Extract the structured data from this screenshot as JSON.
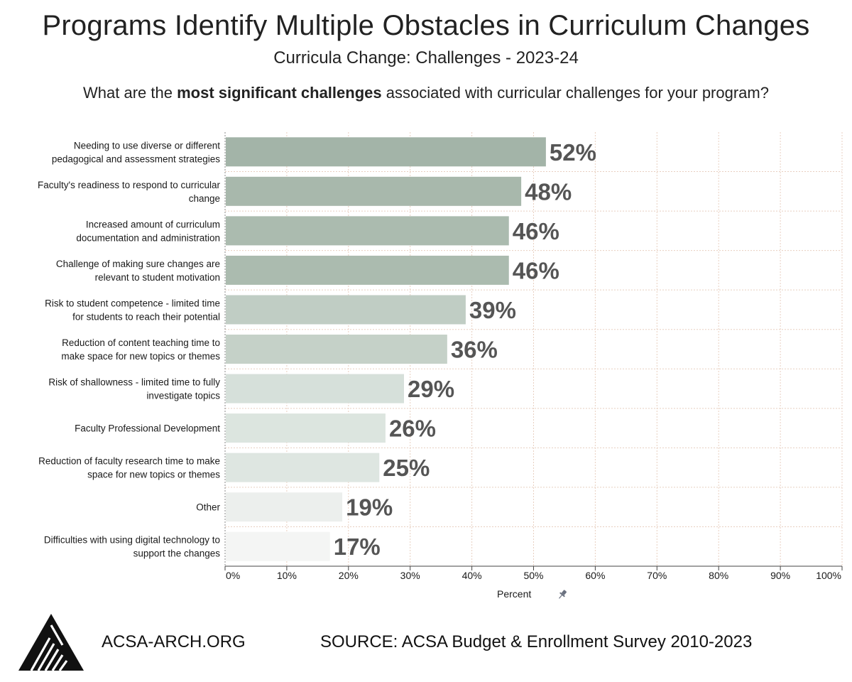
{
  "title": "Programs Identify Multiple Obstacles in Curriculum Changes",
  "subtitle": "Curricula Change: Challenges - 2023-24",
  "question": {
    "prefix": "What are the ",
    "emphasis": "most significant challenges",
    "suffix": " associated with curricular challenges for your program?"
  },
  "chart_data": {
    "type": "bar",
    "orientation": "horizontal",
    "categories": [
      [
        "Needing to use diverse or different",
        "pedagogical and assessment strategies"
      ],
      [
        "Faculty's readiness to respond to curricular",
        "change"
      ],
      [
        "Increased amount of curriculum",
        "documentation and administration"
      ],
      [
        "Challenge of making sure changes are",
        "relevant to student motivation"
      ],
      [
        "Risk to student competence  - limited time",
        "for students to reach their potential"
      ],
      [
        "Reduction of content teaching time to",
        "make space for new topics or themes"
      ],
      [
        "Risk of shallowness - limited time to fully",
        "investigate topics"
      ],
      [
        "Faculty Professional Development"
      ],
      [
        "Reduction of faculty research time to make",
        "space for new topics or themes"
      ],
      [
        "Other"
      ],
      [
        "Difficulties with using digital technology to",
        "support the changes"
      ]
    ],
    "values": [
      52,
      48,
      46,
      46,
      39,
      36,
      29,
      26,
      25,
      19,
      17
    ],
    "value_labels": [
      "52%",
      "48%",
      "46%",
      "46%",
      "39%",
      "36%",
      "29%",
      "26%",
      "25%",
      "19%",
      "17%"
    ],
    "colors": [
      "#a3b4a8",
      "#a8b8ac",
      "#abbbaf",
      "#abbbaf",
      "#c0cdc4",
      "#c5d1c8",
      "#d6e0da",
      "#dce5df",
      "#dee6e1",
      "#ecefed",
      "#f4f5f4"
    ],
    "xlabel": "Percent",
    "xlim": [
      0,
      100
    ],
    "x_ticks": [
      "0%",
      "10%",
      "20%",
      "30%",
      "40%",
      "50%",
      "60%",
      "70%",
      "80%",
      "90%",
      "100%"
    ],
    "grid": true
  },
  "footer": {
    "site": "ACSA-ARCH.ORG",
    "source": "SOURCE: ACSA Budget & Enrollment Survey 2010-2023"
  },
  "icons": {
    "axis_pin": "pin-icon",
    "brand_logo": "acsa-logo-icon"
  }
}
